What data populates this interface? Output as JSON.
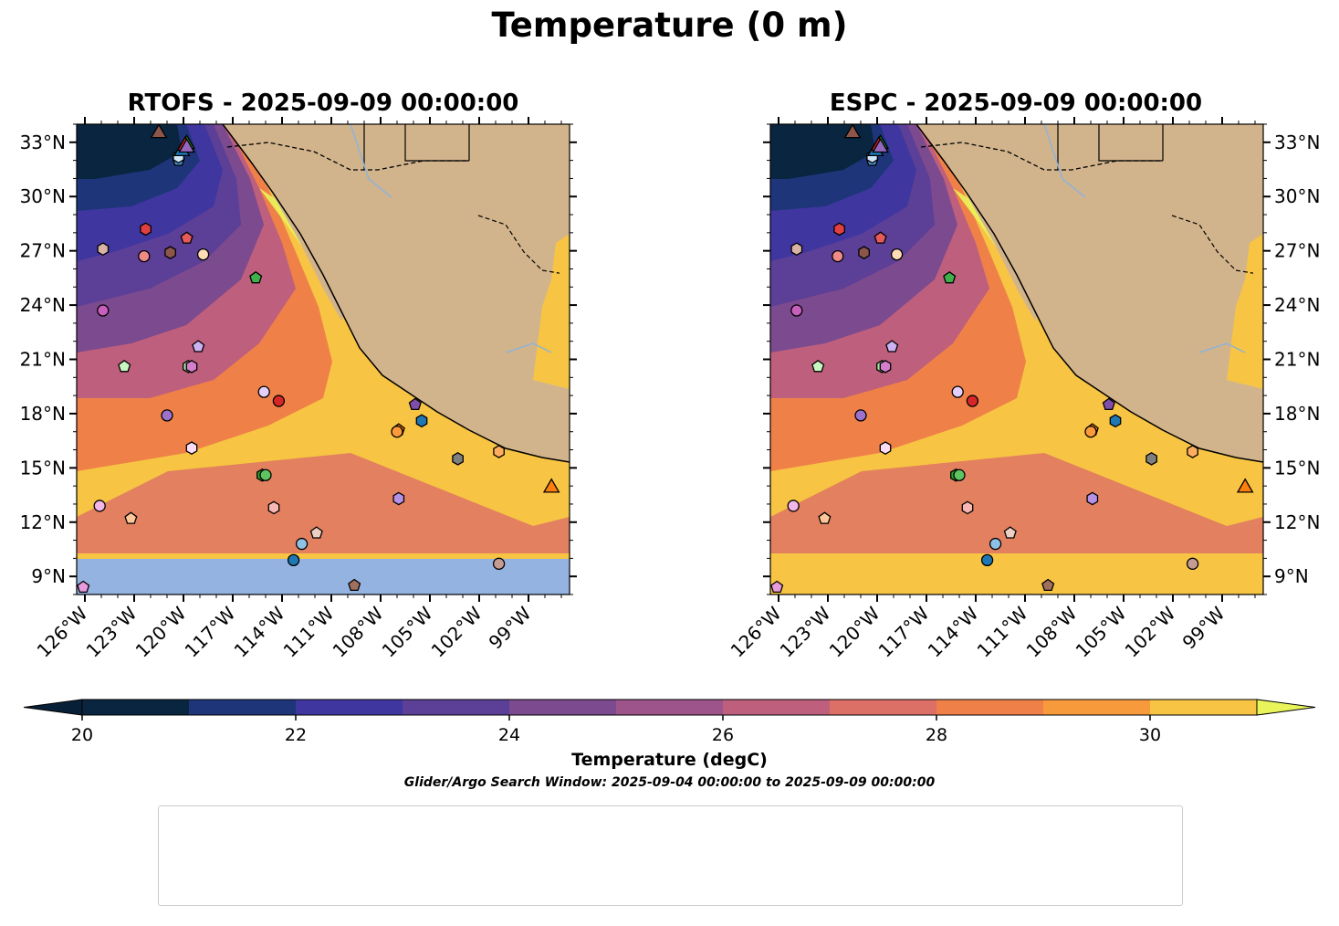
{
  "figure": {
    "title": "Temperature (0 m)",
    "colorbar_label": "Temperature (degC)",
    "search_window": "Glider/Argo Search Window: 2025-09-04 00:00:00 to 2025-09-09 00:00:00"
  },
  "chart_data": [
    {
      "type": "map",
      "title": "RTOFS - 2025-09-09 00:00:00",
      "model": "RTOFS",
      "variable": "Temperature",
      "units": "degC",
      "depth_m": 0,
      "lon_range": [
        -126.5,
        -96.5
      ],
      "lat_range": [
        8,
        34
      ],
      "lon_ticks": [
        "126°W",
        "123°W",
        "120°W",
        "117°W",
        "114°W",
        "111°W",
        "108°W",
        "105°W",
        "102°W",
        "99°W"
      ],
      "lat_ticks": [
        "33°N",
        "30°N",
        "27°N",
        "24°N",
        "21°N",
        "18°N",
        "15°N",
        "12°N",
        "9°N"
      ],
      "no_data_below_lat": 10
    },
    {
      "type": "map",
      "title": "ESPC - 2025-09-09 00:00:00",
      "model": "ESPC",
      "variable": "Temperature",
      "units": "degC",
      "depth_m": 0,
      "lon_range": [
        -126.5,
        -96.5
      ],
      "lat_range": [
        8,
        34
      ],
      "lon_ticks": [
        "126°W",
        "123°W",
        "120°W",
        "117°W",
        "114°W",
        "111°W",
        "108°W",
        "105°W",
        "102°W",
        "99°W"
      ],
      "lat_ticks": [
        "33°N",
        "30°N",
        "27°N",
        "24°N",
        "21°N",
        "18°N",
        "15°N",
        "12°N",
        "9°N"
      ]
    }
  ],
  "colorbar": {
    "min": 20,
    "max": 31,
    "step": 1,
    "extend": "both",
    "ticks": [
      "20",
      "22",
      "24",
      "26",
      "28",
      "30"
    ],
    "colors": [
      "#0a2540",
      "#1e3579",
      "#3f36a0",
      "#5c3f96",
      "#7c4a8e",
      "#9d548a",
      "#bd5f7d",
      "#dc6f66",
      "#ef8148",
      "#f79a3c",
      "#f7c443"
    ],
    "under_color": "#082037",
    "over_color": "#e8f45a"
  },
  "observations": [
    {
      "id": "1902270",
      "marker": "circle",
      "color": "#1f77b4",
      "lon": -113.3,
      "lat": 9.9
    },
    {
      "id": "2903857",
      "marker": "hexagon",
      "color": "#1f77b4",
      "lon": -105.5,
      "lat": 17.6
    },
    {
      "id": "2903886",
      "marker": "pentagon",
      "color": "#4a8fc9",
      "lon": -120.3,
      "lat": 32.0
    },
    {
      "id": "3902277",
      "marker": "circle",
      "color": "#8ec1e6",
      "lon": -112.8,
      "lat": 10.8
    },
    {
      "id": "3902278",
      "marker": "hexagon",
      "color": "#cfe6f7",
      "lon": -120.3,
      "lat": 32.2
    },
    {
      "id": "3902329",
      "marker": "pentagon",
      "color": "#ff7f0e",
      "lon": -106.9,
      "lat": 17.1
    },
    {
      "id": "3902375",
      "marker": "circle",
      "color": "#ff9a3a",
      "lon": -107.0,
      "lat": 17.0
    },
    {
      "id": "3902386",
      "marker": "hexagon",
      "color": "#ffad5e",
      "lon": -100.8,
      "lat": 15.9
    },
    {
      "id": "4902316",
      "marker": "pentagon",
      "color": "#ffc79a",
      "lon": -123.2,
      "lat": 12.2
    },
    {
      "id": "4902328",
      "marker": "circle",
      "color": "#ffdcb5",
      "lon": -118.8,
      "lat": 26.8
    },
    {
      "id": "4902333",
      "marker": "hexagon",
      "color": "#2ca02c",
      "lon": -115.2,
      "lat": 14.6
    },
    {
      "id": "4902475",
      "marker": "pentagon",
      "color": "#3fb04b",
      "lon": -115.6,
      "lat": 25.5
    },
    {
      "id": "4903010",
      "marker": "circle",
      "color": "#5ec462",
      "lon": -115.0,
      "lat": 14.6
    },
    {
      "id": "4903181",
      "marker": "hexagon",
      "color": "#9fe39b",
      "lon": -119.7,
      "lat": 20.6
    },
    {
      "id": "4903183",
      "marker": "pentagon",
      "color": "#c9f7c1",
      "lon": -123.6,
      "lat": 20.6
    },
    {
      "id": "4903184",
      "marker": "circle",
      "color": "#d62728",
      "lon": -114.2,
      "lat": 18.7
    },
    {
      "id": "4903185",
      "marker": "hexagon",
      "color": "#e04040",
      "lon": -122.3,
      "lat": 28.2
    },
    {
      "id": "4903188",
      "marker": "pentagon",
      "color": "#e65a5a",
      "lon": -119.8,
      "lat": 27.7
    },
    {
      "id": "4903195",
      "marker": "circle",
      "color": "#f08a86",
      "lon": -122.4,
      "lat": 26.7
    },
    {
      "id": "4903200",
      "marker": "hexagon",
      "color": "#f8b7b3",
      "lon": -114.5,
      "lat": 12.8
    },
    {
      "id": "4903294",
      "marker": "pentagon",
      "color": "#7e4ea8",
      "lon": -105.9,
      "lat": 18.5
    },
    {
      "id": "4903318",
      "marker": "circle",
      "color": "#9c72cc",
      "lon": -121.0,
      "lat": 17.9
    },
    {
      "id": "4903516",
      "marker": "hexagon",
      "color": "#b592e6",
      "lon": -106.9,
      "lat": 13.3
    },
    {
      "id": "4903743",
      "marker": "pentagon",
      "color": "#cdb2f2",
      "lon": -119.1,
      "lat": 21.7
    },
    {
      "id": "5905300",
      "marker": "circle",
      "color": "#e3cff9",
      "lon": -115.1,
      "lat": 19.2
    },
    {
      "id": "5906017",
      "marker": "hexagon",
      "color": "#8c564b",
      "lon": -120.8,
      "lat": 26.9
    },
    {
      "id": "5906023",
      "marker": "pentagon",
      "color": "#a0705f",
      "lon": -109.6,
      "lat": 8.5
    },
    {
      "id": "5906090",
      "marker": "circle",
      "color": "#c49c94",
      "lon": -100.8,
      "lat": 9.7
    },
    {
      "id": "5906183",
      "marker": "hexagon",
      "color": "#d9b3a4",
      "lon": -124.9,
      "lat": 27.1
    },
    {
      "id": "5906449",
      "marker": "pentagon",
      "color": "#ecd0c4",
      "lon": -111.9,
      "lat": 11.4
    },
    {
      "id": "5906690",
      "marker": "circle",
      "color": "#c85fbd",
      "lon": -124.9,
      "lat": 23.7
    },
    {
      "id": "5906798",
      "marker": "hexagon",
      "color": "#d57ecb",
      "lon": -119.5,
      "lat": 20.6
    },
    {
      "id": "5906853",
      "marker": "pentagon",
      "color": "#e79adc",
      "lon": -126.1,
      "lat": 8.4
    },
    {
      "id": "5906857",
      "marker": "circle",
      "color": "#f2b6e8",
      "lon": -125.1,
      "lat": 12.9
    },
    {
      "id": "5907053",
      "marker": "hexagon",
      "color": "#fbdcf4",
      "lon": -119.5,
      "lat": 16.1
    },
    {
      "id": "5907056",
      "marker": "hexagon",
      "color": "#7f7f7f",
      "lon": -103.3,
      "lat": 15.5
    },
    {
      "id": "sg652",
      "marker": "triangle",
      "color": "#1f77b4",
      "lon": -120.1,
      "lat": 32.5
    },
    {
      "id": "sg672",
      "marker": "triangle",
      "color": "#ff7f0e",
      "lon": -97.6,
      "lat": 13.9
    },
    {
      "id": "sp013",
      "marker": "triangle",
      "color": "#2ca02c",
      "lon": -119.8,
      "lat": 32.9
    },
    {
      "id": "sp036",
      "marker": "triangle",
      "color": "#d62728",
      "lon": -119.9,
      "lat": 32.8
    },
    {
      "id": "sp040",
      "marker": "triangle",
      "color": "#9467bd",
      "lon": -119.8,
      "lat": 32.7
    },
    {
      "id": "sp058",
      "marker": "triangle",
      "color": "#8c564b",
      "lon": -121.5,
      "lat": 33.5
    }
  ]
}
